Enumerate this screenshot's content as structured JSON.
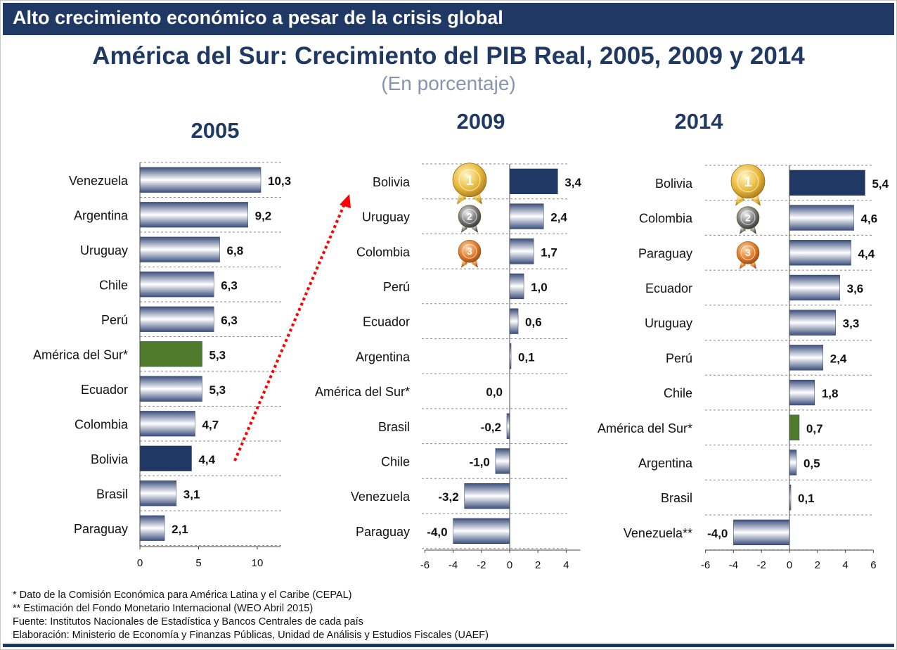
{
  "header": {
    "banner": "Alto crecimiento económico a pesar de la crisis global"
  },
  "title": "América del Sur: Crecimiento del PIB Real, 2005, 2009 y 2014",
  "subtitle": "(En porcentaje)",
  "colors": {
    "navy": "#1f3864",
    "green": "#4f7b2b",
    "stripe_dark": "#3b4f7d",
    "stripe_light": "#ffffff",
    "arrow": "#ff0000"
  },
  "chart_data": [
    {
      "type": "bar",
      "orientation": "horizontal",
      "title": "2005",
      "categories": [
        "Venezuela",
        "Argentina",
        "Uruguay",
        "Chile",
        "Perú",
        "América del Sur*",
        "Ecuador",
        "Colombia",
        "Bolivia",
        "Brasil",
        "Paraguay"
      ],
      "values": [
        10.3,
        9.2,
        6.8,
        6.3,
        6.3,
        5.3,
        5.3,
        4.7,
        4.4,
        3.1,
        2.1
      ],
      "value_labels": [
        "10,3",
        "9,2",
        "6,8",
        "6,3",
        "6,3",
        "5,3",
        "5,3",
        "4,7",
        "4,4",
        "3,1",
        "2,1"
      ],
      "highlight": {
        "Bolivia": "navy",
        "América del Sur*": "green"
      },
      "xlim": [
        0,
        12
      ],
      "xticks": [
        0,
        5,
        10
      ],
      "xtick_labels": [
        "0",
        "5",
        "10"
      ]
    },
    {
      "type": "bar",
      "orientation": "horizontal",
      "title": "2009",
      "categories": [
        "Bolivia",
        "Uruguay",
        "Colombia",
        "Perú",
        "Ecuador",
        "Argentina",
        "América del Sur*",
        "Brasil",
        "Chile",
        "Venezuela",
        "Paraguay"
      ],
      "values": [
        3.4,
        2.4,
        1.7,
        1.0,
        0.6,
        0.1,
        0.0,
        -0.2,
        -1.0,
        -3.2,
        -4.0
      ],
      "value_labels": [
        "3,4",
        "2,4",
        "1,7",
        "1,0",
        "0,6",
        "0,1",
        "0,0",
        "-0,2",
        "-1,0",
        "-3,2",
        "-4,0"
      ],
      "highlight": {
        "Bolivia": "navy"
      },
      "medals": {
        "Bolivia": "1",
        "Uruguay": "2",
        "Colombia": "3"
      },
      "xlim": [
        -6,
        5
      ],
      "xticks": [
        -6,
        -4,
        -2,
        0,
        2,
        4
      ],
      "xtick_labels": [
        "-6",
        "-4",
        "-2",
        "0",
        "2",
        "4"
      ]
    },
    {
      "type": "bar",
      "orientation": "horizontal",
      "title": "2014",
      "categories": [
        "Bolivia",
        "Colombia",
        "Paraguay",
        "Ecuador",
        "Uruguay",
        "Perú",
        "Chile",
        "América del Sur*",
        "Argentina",
        "Brasil",
        "Venezuela**"
      ],
      "values": [
        5.4,
        4.6,
        4.4,
        3.6,
        3.3,
        2.4,
        1.8,
        0.7,
        0.5,
        0.1,
        -4.0
      ],
      "value_labels": [
        "5,4",
        "4,6",
        "4,4",
        "3,6",
        "3,3",
        "2,4",
        "1,8",
        "0,7",
        "0,5",
        "0,1",
        "-4,0"
      ],
      "highlight": {
        "Bolivia": "navy",
        "América del Sur*": "green"
      },
      "medals": {
        "Bolivia": "1",
        "Colombia": "2",
        "Paraguay": "3"
      },
      "xlim": [
        -6,
        6
      ],
      "xticks": [
        -6,
        -4,
        -2,
        0,
        2,
        4,
        6
      ],
      "xtick_labels": [
        "-6",
        "-4",
        "-2",
        "0",
        "2",
        "4",
        "6"
      ]
    }
  ],
  "footnotes": [
    "* Dato de la Comisión Económica para América Latina y el Caribe (CEPAL)",
    "** Estimación del Fondo Monetario Internacional (WEO Abril 2015)",
    "Fuente: Institutos Nacionales de Estadística y Bancos Centrales de cada país",
    "Elaboración: Ministerio de Economía y Finanzas Públicas, Unidad de Análisis y Estudios Fiscales (UAEF)"
  ]
}
